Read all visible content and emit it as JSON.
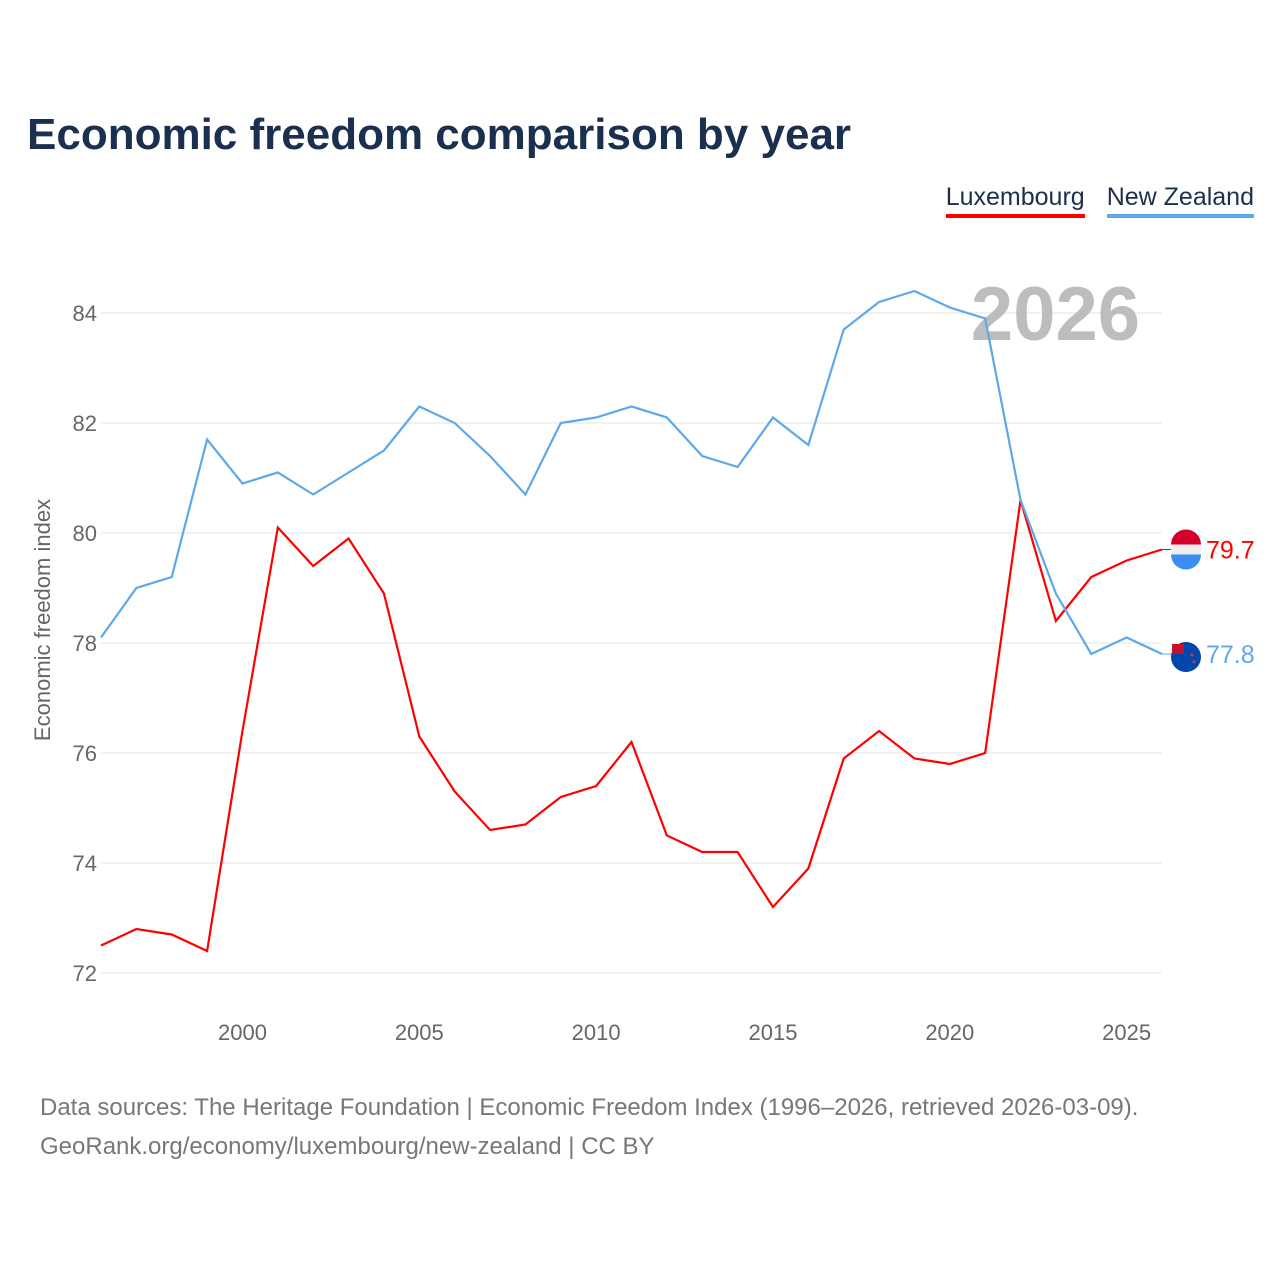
{
  "chart_data": {
    "type": "line",
    "title": "Economic freedom comparison by year",
    "ylabel": "Economic freedom index",
    "xlabel": "",
    "ylim": [
      72,
      84
    ],
    "xlim": [
      1996,
      2026
    ],
    "yticks": [
      72,
      74,
      76,
      78,
      80,
      82,
      84
    ],
    "xticks": [
      2000,
      2005,
      2010,
      2015,
      2020,
      2025
    ],
    "grid": true,
    "legend_position": "top-right",
    "year_watermark": "2026",
    "x": [
      1996,
      1997,
      1998,
      1999,
      2000,
      2001,
      2002,
      2003,
      2004,
      2005,
      2006,
      2007,
      2008,
      2009,
      2010,
      2011,
      2012,
      2013,
      2014,
      2015,
      2016,
      2017,
      2018,
      2019,
      2020,
      2021,
      2022,
      2023,
      2024,
      2025,
      2026
    ],
    "series": [
      {
        "name": "Luxembourg",
        "color": "#ff0000",
        "end_label": "79.7",
        "values": [
          72.5,
          72.8,
          72.7,
          72.4,
          76.4,
          80.1,
          79.4,
          79.9,
          78.9,
          76.3,
          75.3,
          74.6,
          74.7,
          75.2,
          75.4,
          76.2,
          74.5,
          74.2,
          74.2,
          73.2,
          73.9,
          75.9,
          76.4,
          75.9,
          75.8,
          76.0,
          80.6,
          78.4,
          79.2,
          79.5,
          79.7
        ]
      },
      {
        "name": "New Zealand",
        "color": "#5ea8ea",
        "end_label": "77.8",
        "values": [
          78.1,
          79.0,
          79.2,
          81.7,
          80.9,
          81.1,
          80.7,
          81.1,
          81.5,
          82.3,
          82.0,
          81.4,
          80.7,
          82.0,
          82.1,
          82.3,
          82.1,
          81.4,
          81.2,
          82.1,
          81.6,
          83.7,
          84.2,
          84.4,
          84.1,
          83.9,
          80.6,
          78.9,
          77.8,
          78.1,
          77.8
        ]
      }
    ]
  },
  "source_line1": "Data sources: The Heritage Foundation | Economic Freedom Index (1996–2026, retrieved 2026-03-09).",
  "source_line2": "GeoRank.org/economy/luxembourg/new-zealand | CC BY"
}
